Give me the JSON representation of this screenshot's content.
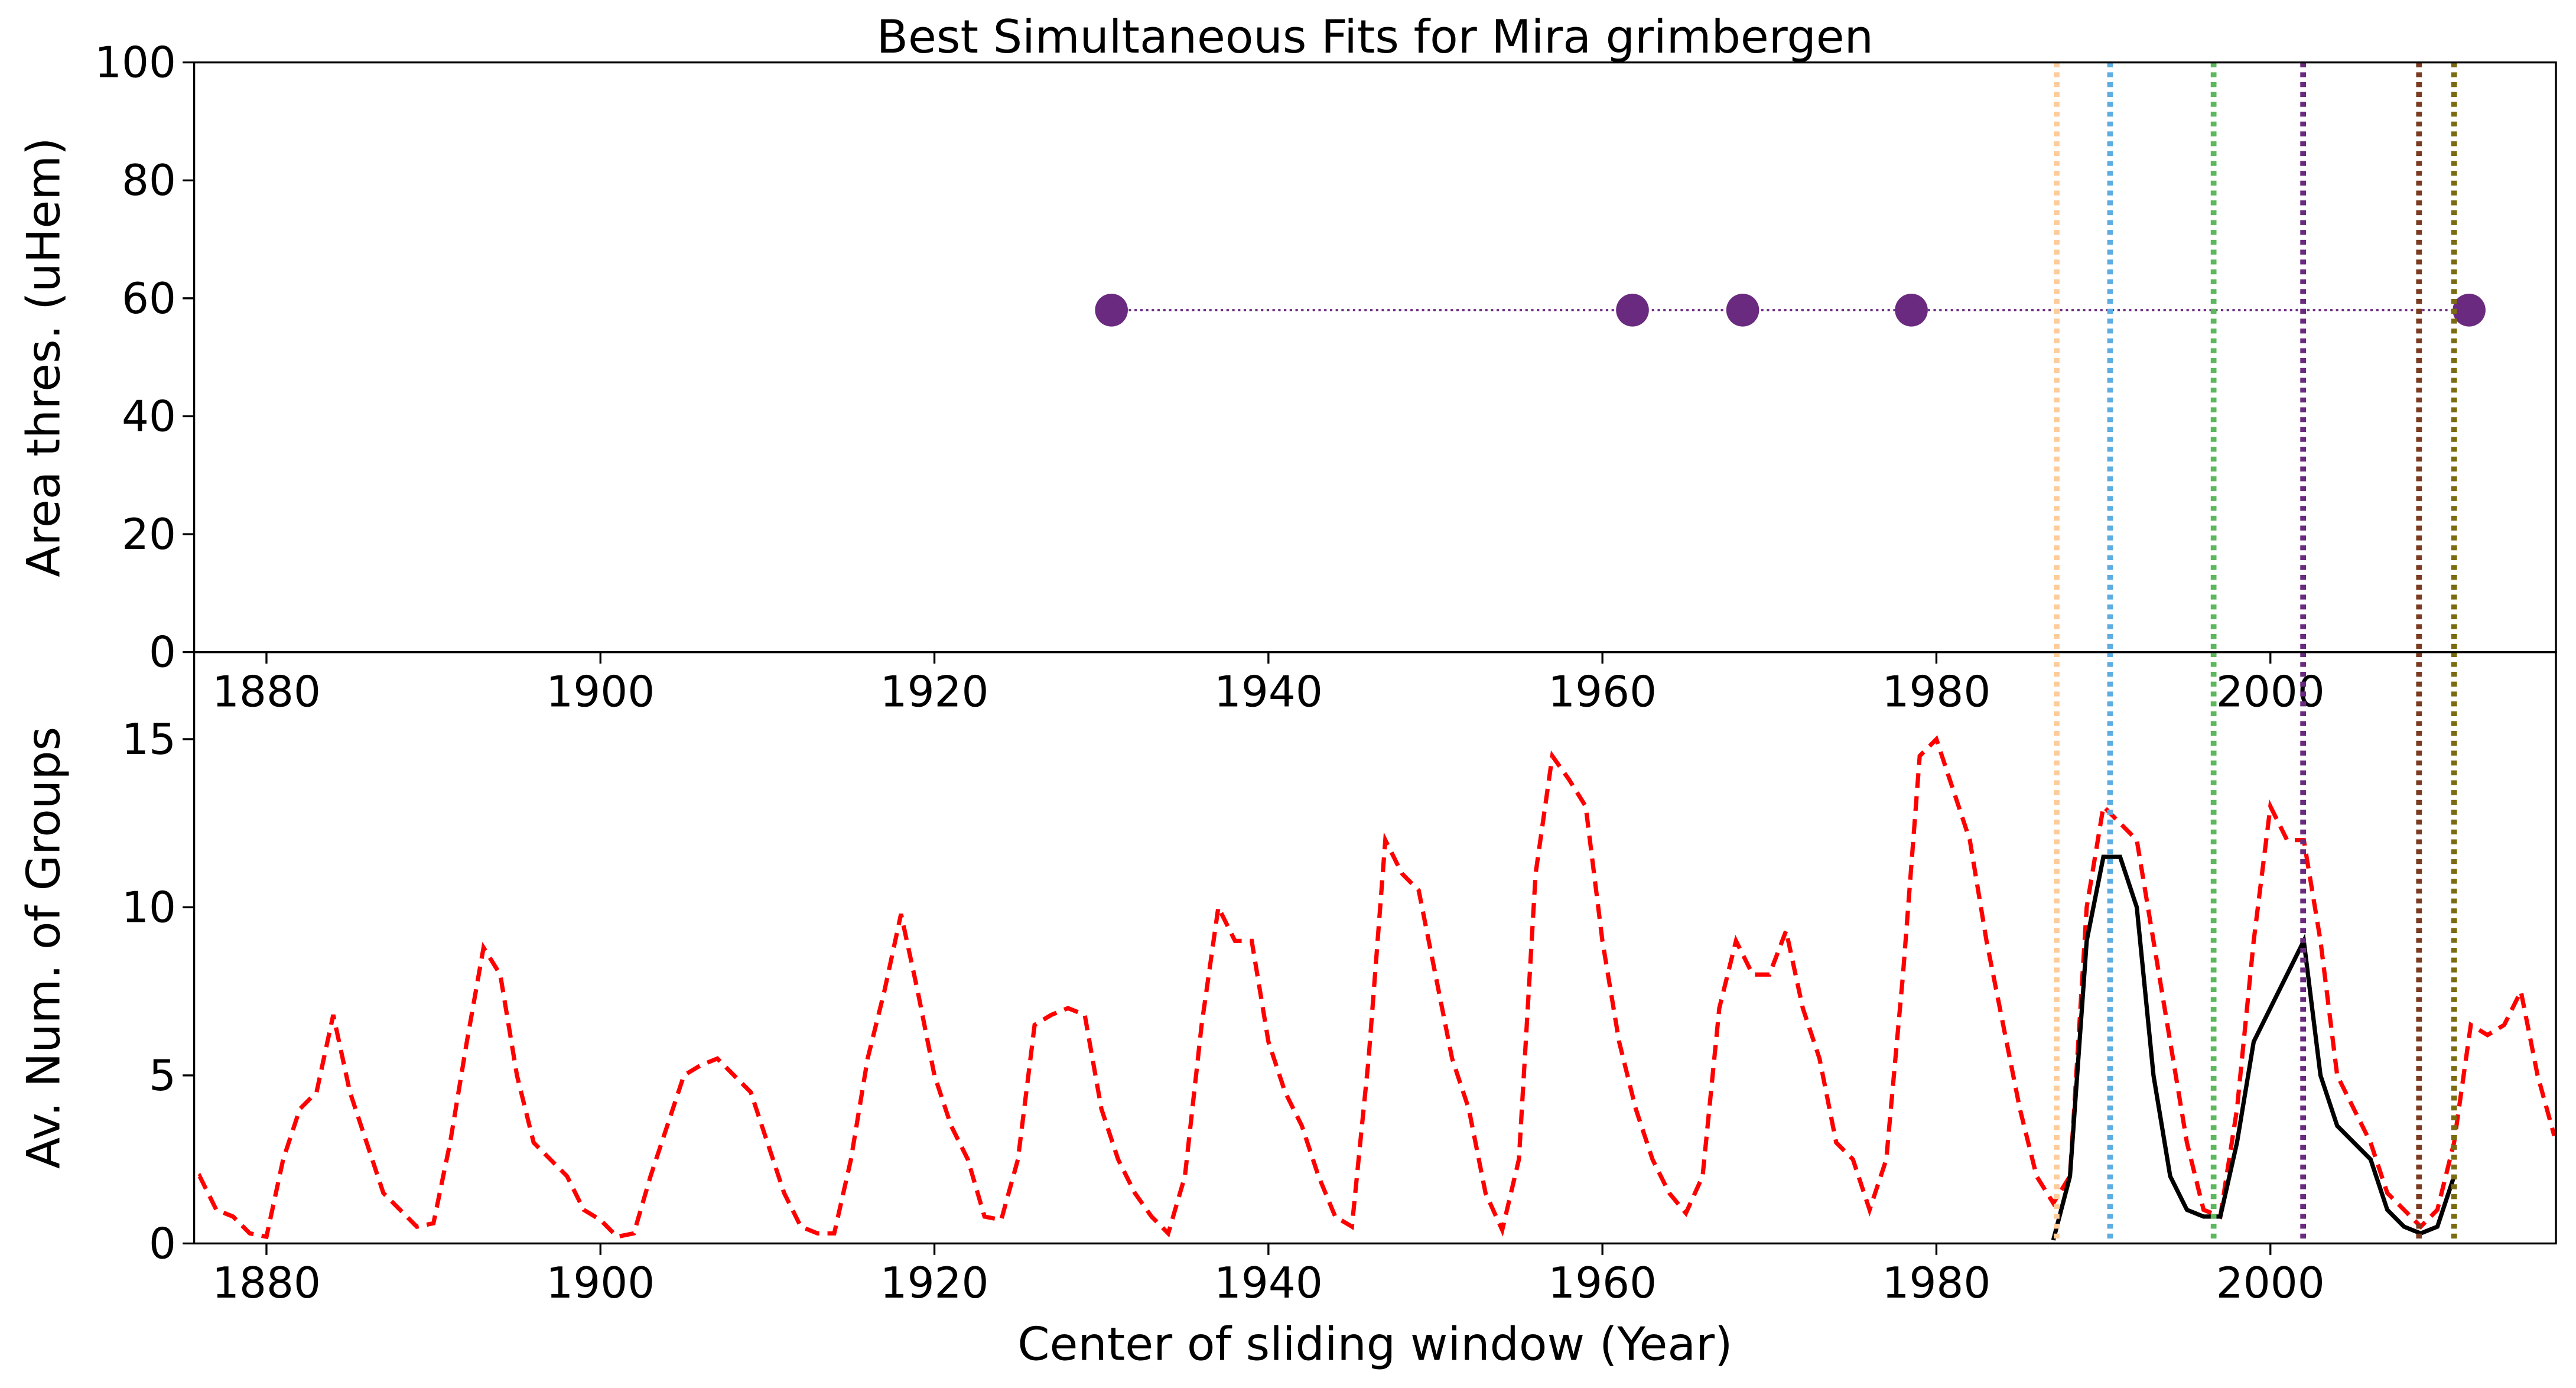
{
  "chart_data": [
    {
      "type": "line",
      "title": "Best Simultaneous Fits for Mira grimbergen",
      "y_label": "Area thres. (uHem)",
      "xlim": [
        1875.67,
        2017.1
      ],
      "xticks": [
        1880,
        1900,
        1920,
        1940,
        1960,
        1980,
        2000
      ],
      "ylim": [
        0,
        100
      ],
      "yticks": [
        0,
        20,
        40,
        60,
        80,
        100
      ],
      "series": [
        {
          "color": "#6a2a7f",
          "style": "dotted",
          "marker": true,
          "x": [
            1930.6,
            1961.8,
            1968.4,
            1978.5,
            2011.9
          ],
          "values": [
            58,
            58,
            58,
            58,
            58
          ]
        }
      ],
      "vlines": [
        {
          "x": 1987.2,
          "color": "#fdcc9a"
        },
        {
          "x": 1990.4,
          "color": "#5dade2"
        },
        {
          "x": 1996.6,
          "color": "#5cb85c"
        },
        {
          "x": 2001.96,
          "color": "#6a2a7f"
        },
        {
          "x": 2008.9,
          "color": "#7a3b20"
        },
        {
          "x": 2011.0,
          "color": "#7a6a10"
        }
      ]
    },
    {
      "type": "line",
      "x_label": "Center of sliding window (Year)",
      "y_label": "Av. Num. of Groups",
      "xlim": [
        1875.67,
        2017.1
      ],
      "xticks": [
        1880,
        1900,
        1920,
        1940,
        1960,
        1980,
        2000
      ],
      "ylim": [
        0,
        17.59
      ],
      "yticks": [
        0,
        5,
        10,
        15
      ],
      "series": [
        {
          "color": "#ff0000",
          "style": "dashed",
          "marker": false,
          "x": [
            1875,
            1876,
            1877,
            1878,
            1879,
            1880,
            1881,
            1882,
            1883,
            1884,
            1885,
            1886,
            1887,
            1888,
            1889,
            1890,
            1891,
            1892,
            1893,
            1894,
            1895,
            1896,
            1897,
            1898,
            1899,
            1900,
            1901,
            1902,
            1903,
            1904,
            1905,
            1906,
            1907,
            1908,
            1909,
            1910,
            1911,
            1912,
            1913,
            1914,
            1915,
            1916,
            1917,
            1918,
            1919,
            1920,
            1921,
            1922,
            1923,
            1924,
            1925,
            1926,
            1927,
            1928,
            1929,
            1930,
            1931,
            1932,
            1933,
            1934,
            1935,
            1936,
            1937,
            1938,
            1939,
            1940,
            1941,
            1942,
            1943,
            1944,
            1945,
            1946,
            1947,
            1948,
            1949,
            1950,
            1951,
            1952,
            1953,
            1954,
            1955,
            1956,
            1957,
            1958,
            1959,
            1960,
            1961,
            1962,
            1963,
            1964,
            1965,
            1966,
            1967,
            1968,
            1969,
            1970,
            1971,
            1972,
            1973,
            1974,
            1975,
            1976,
            1977,
            1978,
            1979,
            1980,
            1981,
            1982,
            1983,
            1984,
            1985,
            1986,
            1987,
            1988,
            1989,
            1990,
            1991,
            1992,
            1993,
            1994,
            1995,
            1996,
            1997,
            1998,
            1999,
            2000,
            2001,
            2002,
            2003,
            2004,
            2005,
            2006,
            2007,
            2008,
            2009,
            2010,
            2011,
            2012,
            2013,
            2014,
            2015,
            2016,
            2017
          ],
          "values": [
            1.5,
            2.0,
            1.0,
            0.8,
            0.3,
            0.2,
            2.5,
            4,
            4.5,
            6.8,
            4.5,
            3,
            1.5,
            1,
            0.5,
            0.6,
            3,
            6,
            8.8,
            8,
            5,
            3,
            2.5,
            2,
            1,
            0.7,
            0.2,
            0.3,
            2,
            3.5,
            5,
            5.3,
            5.5,
            5,
            4.5,
            3,
            1.5,
            0.5,
            0.3,
            0.3,
            2.5,
            5.5,
            7.5,
            9.8,
            7.5,
            5,
            3.5,
            2.5,
            0.8,
            0.7,
            2.5,
            6.5,
            6.8,
            7,
            6.8,
            4,
            2.5,
            1.5,
            0.8,
            0.3,
            2,
            6.5,
            10,
            9,
            9,
            6,
            4.5,
            3.5,
            2,
            0.8,
            0.5,
            5.5,
            12,
            11,
            10.5,
            8,
            5.5,
            4,
            1.5,
            0.4,
            2.5,
            11,
            14.5,
            13.8,
            13,
            9,
            6,
            4,
            2.5,
            1.5,
            0.9,
            2,
            7,
            9,
            8,
            8,
            9.3,
            7,
            5.5,
            3,
            2.5,
            1,
            2.5,
            8,
            14.5,
            15,
            13.5,
            12,
            9,
            6.5,
            4,
            2,
            1.2,
            2,
            10,
            13,
            12.5,
            12,
            9,
            6,
            3,
            1,
            0.8,
            4,
            9,
            13,
            12,
            12,
            9,
            5,
            4,
            3,
            1.5,
            1,
            0.5,
            1,
            3,
            6.5,
            6.2,
            6.5,
            7.5,
            5,
            3.2
          ]
        },
        {
          "color": "#000000",
          "style": "solid",
          "marker": false,
          "x": [
            1987,
            1988,
            1989,
            1990,
            1991,
            1992,
            1993,
            1994,
            1995,
            1996,
            1997,
            1998,
            1999,
            2000,
            2001,
            2002,
            2003,
            2004,
            2005,
            2006,
            2007,
            2008,
            2009,
            2010,
            2011
          ],
          "values": [
            0.1,
            2,
            9,
            11.5,
            11.5,
            10,
            5,
            2,
            1,
            0.8,
            0.8,
            3,
            6,
            7,
            8,
            9,
            5,
            3.5,
            3,
            2.5,
            1,
            0.5,
            0.3,
            0.5,
            2
          ]
        }
      ],
      "vlines": [
        {
          "x": 1987.2,
          "color": "#fdcc9a"
        },
        {
          "x": 1990.4,
          "color": "#5dade2"
        },
        {
          "x": 1996.6,
          "color": "#5cb85c"
        },
        {
          "x": 2001.96,
          "color": "#6a2a7f"
        },
        {
          "x": 2008.9,
          "color": "#7a3b20"
        },
        {
          "x": 2011.0,
          "color": "#7a6a10"
        }
      ]
    }
  ]
}
